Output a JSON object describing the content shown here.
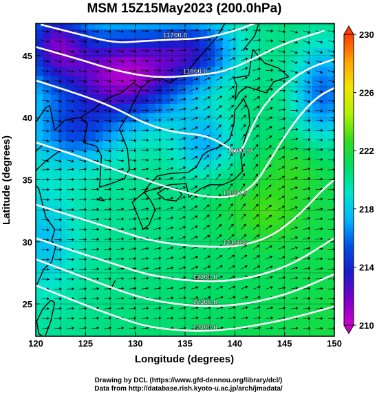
{
  "chart_data": {
    "type": "heatmap",
    "title": "MSM 15Z15May2023 (200.0hPa)",
    "xlabel": "Longitude (degrees)",
    "ylabel": "Latitude  (degrees)",
    "xlim": [
      120,
      150
    ],
    "ylim": [
      22.4,
      47.6
    ],
    "xticks": [
      120,
      125,
      130,
      135,
      140,
      145,
      150
    ],
    "yticks": [
      25,
      30,
      35,
      40,
      45
    ],
    "grid": true,
    "colorbar": {
      "range": [
        210,
        230
      ],
      "ticks": [
        210,
        214,
        218,
        222,
        226,
        230
      ],
      "colors": [
        "#cc00cc",
        "#7a00cc",
        "#1a1acc",
        "#0050e6",
        "#00b4ff",
        "#00e6c8",
        "#00dc64",
        "#32dc1e",
        "#b4f000",
        "#f0e600",
        "#ffa000",
        "#ff3c00"
      ]
    },
    "contours": [
      {
        "label": "11700.0",
        "points": [
          [
            120.5,
            47.5
          ],
          [
            124,
            46.8
          ],
          [
            128,
            46
          ],
          [
            131,
            46.2
          ],
          [
            134,
            46.3
          ],
          [
            137,
            46.4
          ],
          [
            140,
            47
          ],
          [
            142,
            47.6
          ]
        ]
      },
      {
        "label": "11800.0",
        "points": [
          [
            120,
            45.7
          ],
          [
            124,
            44.8
          ],
          [
            128,
            43.8
          ],
          [
            132,
            43.2
          ],
          [
            136,
            43.4
          ],
          [
            139,
            43.7
          ],
          [
            142,
            44.8
          ],
          [
            145,
            46
          ],
          [
            149,
            47
          ]
        ]
      },
      {
        "label": "11900.0",
        "points": [
          [
            120,
            43
          ],
          [
            124,
            42
          ],
          [
            128,
            40.8
          ],
          [
            131,
            39.5
          ],
          [
            134,
            38.8
          ],
          [
            137,
            38.6
          ],
          [
            139,
            37.8
          ],
          [
            140.5,
            37
          ],
          [
            141.5,
            38.8
          ],
          [
            142.5,
            40.5
          ],
          [
            144,
            42
          ],
          [
            146,
            43.3
          ],
          [
            148,
            44.2
          ],
          [
            150,
            44.7
          ]
        ]
      },
      {
        "label": "12000.0",
        "points": [
          [
            120,
            38
          ],
          [
            124,
            37
          ],
          [
            128,
            35.8
          ],
          [
            131,
            35
          ],
          [
            134,
            34.2
          ],
          [
            137,
            33.6
          ],
          [
            140,
            33.6
          ],
          [
            142,
            34.6
          ],
          [
            143.5,
            36.5
          ],
          [
            145,
            38.5
          ],
          [
            146.8,
            40.5
          ],
          [
            148.5,
            41.8
          ],
          [
            150,
            42.4
          ]
        ]
      },
      {
        "label": "12100.0",
        "points": [
          [
            120,
            33
          ],
          [
            124,
            32
          ],
          [
            128,
            31
          ],
          [
            131,
            30.2
          ],
          [
            134,
            29.8
          ],
          [
            137,
            29.6
          ],
          [
            140,
            29.6
          ],
          [
            143,
            30.2
          ],
          [
            145,
            31.2
          ],
          [
            147,
            32.6
          ],
          [
            148.8,
            34.2
          ],
          [
            150,
            35
          ]
        ]
      },
      {
        "label": "12200.0",
        "points": [
          [
            120,
            30.3
          ],
          [
            124,
            29.2
          ],
          [
            128,
            28.2
          ],
          [
            131,
            27.4
          ],
          [
            134,
            27
          ],
          [
            137,
            26.8
          ],
          [
            140,
            26.9
          ],
          [
            143,
            27.4
          ],
          [
            146,
            28.3
          ],
          [
            148.8,
            29.7
          ],
          [
            150,
            30.3
          ]
        ]
      },
      {
        "label": "12300.0",
        "points": [
          [
            120,
            28.6
          ],
          [
            124,
            27.4
          ],
          [
            128,
            26.2
          ],
          [
            131,
            25.4
          ],
          [
            134,
            25
          ],
          [
            137,
            24.8
          ],
          [
            140,
            24.9
          ],
          [
            143,
            25.3
          ],
          [
            146,
            26
          ],
          [
            150,
            27.4
          ]
        ]
      },
      {
        "label": "12400.0",
        "points": [
          [
            120,
            26.5
          ],
          [
            124,
            25.2
          ],
          [
            128,
            24
          ],
          [
            131,
            23.2
          ],
          [
            134,
            22.9
          ],
          [
            137,
            22.8
          ],
          [
            140,
            23
          ],
          [
            143,
            23.4
          ],
          [
            146,
            23.9
          ],
          [
            150,
            24.8
          ]
        ]
      }
    ]
  },
  "footer": {
    "line1": "Drawing by DCL (https://www.gfd-dennou.org/library/dcl/)",
    "line2": "Data from http://database.rish.kyoto-u.ac.jp/arch/jmadata/"
  }
}
